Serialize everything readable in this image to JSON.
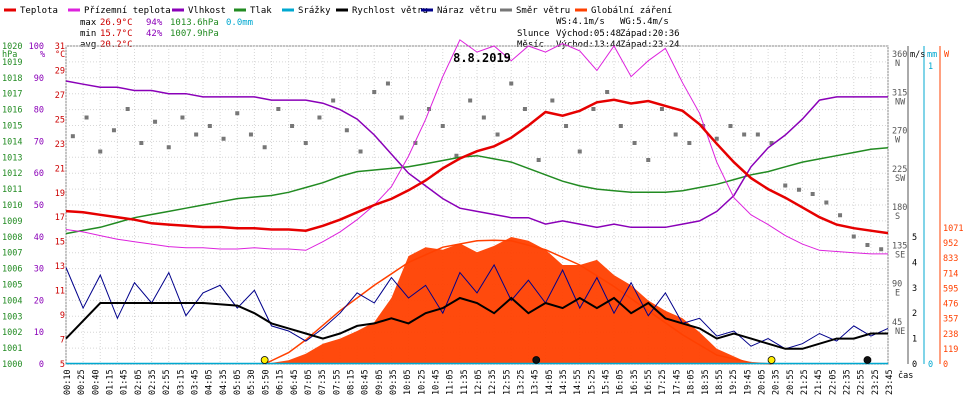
{
  "chart_data": {
    "type": "line",
    "title": "8.8.2019",
    "legend": [
      {
        "name": "Teplota",
        "color": "#e60000"
      },
      {
        "name": "Přízemní teplota",
        "color": "#dd22dd"
      },
      {
        "name": "Vlhkost",
        "color": "#8a00b8"
      },
      {
        "name": "Tlak",
        "color": "#228b22"
      },
      {
        "name": "Srážky",
        "color": "#00a8d0"
      },
      {
        "name": "Rychlost větru",
        "color": "#000000"
      },
      {
        "name": "Náraz větru",
        "color": "#00008b"
      },
      {
        "name": "Směr větru",
        "color": "#777777"
      },
      {
        "name": "Globální záření",
        "color": "#ff4000"
      }
    ],
    "stats": {
      "max_label": "max",
      "max_temp": "26.9°C",
      "max_hum": "94%",
      "max_press": "1013.6hPa",
      "rain": "0.0mm",
      "min_label": "min",
      "min_temp": "15.7°C",
      "min_hum": "42%",
      "min_press": "1007.9hPa",
      "avg_label": "avg",
      "avg_temp": "20.2°C"
    },
    "info": {
      "ws": "WS:4.1m/s",
      "wg": "WG:5.4m/s",
      "slunce_label": "Slunce",
      "slunce_vychod": "Východ:05:48",
      "slunce_zapad": "Západ:20:36",
      "mesic_label": "Měsíc",
      "mesic_vychod": "Východ:13:44",
      "mesic_zapad": "Západ:23:24"
    },
    "unit_labels": {
      "hpa": "hPa",
      "percent": "%",
      "celsius": "°C",
      "ms": "m/s",
      "mm": "mm",
      "w": "W",
      "time": "čas"
    },
    "axes": {
      "hpa_ticks": [
        "1000",
        "1001",
        "1002",
        "1003",
        "1004",
        "1005",
        "1006",
        "1007",
        "1008",
        "1009",
        "1010",
        "1011",
        "1012",
        "1013",
        "1014",
        "1015",
        "1016",
        "1017",
        "1018",
        "1019",
        "1020"
      ],
      "percent_ticks": [
        "0",
        "10",
        "20",
        "30",
        "40",
        "50",
        "60",
        "70",
        "80",
        "90",
        "100"
      ],
      "temp_ticks": [
        "5",
        "7",
        "9",
        "11",
        "13",
        "15",
        "17",
        "19",
        "21",
        "23",
        "25",
        "27",
        "29",
        "31"
      ],
      "dir_ticks": [
        {
          "deg": 45,
          "num": "45",
          "dir": "NE"
        },
        {
          "deg": 90,
          "num": "90",
          "dir": "E"
        },
        {
          "deg": 135,
          "num": "135",
          "dir": "SE"
        },
        {
          "deg": 180,
          "num": "180",
          "dir": "S"
        },
        {
          "deg": 225,
          "num": "225",
          "dir": "SW"
        },
        {
          "deg": 270,
          "num": "270",
          "dir": "W"
        },
        {
          "deg": 315,
          "num": "315",
          "dir": "NW"
        },
        {
          "deg": 360,
          "num": "360",
          "dir": "N"
        }
      ],
      "wind_ticks": [
        "0",
        "1",
        "2",
        "3",
        "4",
        "5"
      ],
      "rain_ticks": [
        "0",
        "1"
      ],
      "rad_ticks": [
        "0",
        "119",
        "238",
        "357",
        "476",
        "595",
        "714",
        "833",
        "952",
        "1071"
      ],
      "time_ticks": [
        "00:10",
        "00:25",
        "00:40",
        "01:15",
        "01:45",
        "02:05",
        "02:35",
        "02:55",
        "03:15",
        "03:45",
        "04:05",
        "04:35",
        "05:05",
        "05:30",
        "05:50",
        "06:15",
        "06:45",
        "07:05",
        "07:35",
        "07:55",
        "08:15",
        "08:45",
        "09:05",
        "09:35",
        "10:05",
        "10:25",
        "10:45",
        "11:05",
        "11:35",
        "12:05",
        "12:35",
        "12:55",
        "13:25",
        "13:45",
        "14:05",
        "14:35",
        "14:55",
        "15:25",
        "15:45",
        "16:05",
        "16:35",
        "16:55",
        "17:25",
        "17:45",
        "18:05",
        "18:35",
        "18:55",
        "19:25",
        "19:45",
        "20:05",
        "20:35",
        "20:55",
        "21:25",
        "21:45",
        "22:05",
        "22:35",
        "22:55",
        "23:25",
        "23:45"
      ]
    },
    "series": [
      {
        "name": "Teplota",
        "unit": "°C",
        "x": [
          0,
          0.5,
          1,
          1.5,
          2,
          2.5,
          3,
          3.5,
          4,
          4.5,
          5,
          5.5,
          6,
          6.5,
          7,
          7.5,
          8,
          8.5,
          9,
          9.5,
          10,
          10.5,
          11,
          11.5,
          12,
          12.5,
          13,
          13.5,
          14,
          14.5,
          15,
          15.5,
          16,
          16.5,
          17,
          17.5,
          18,
          18.5,
          19,
          19.5,
          20,
          20.5,
          21,
          21.5,
          22,
          22.5,
          23,
          23.5,
          24
        ],
        "y": [
          17.5,
          17.4,
          17.2,
          17.0,
          16.8,
          16.5,
          16.4,
          16.3,
          16.2,
          16.2,
          16.1,
          16.1,
          16.0,
          16.0,
          15.9,
          16.3,
          16.8,
          17.4,
          18.0,
          18.5,
          19.2,
          20.0,
          21.0,
          21.8,
          22.4,
          22.8,
          23.5,
          24.5,
          25.6,
          25.3,
          25.7,
          26.4,
          26.6,
          26.3,
          26.5,
          26.1,
          25.7,
          24.6,
          23.0,
          21.5,
          20.2,
          19.3,
          18.6,
          17.8,
          17.0,
          16.4,
          16.1,
          15.9,
          15.7
        ]
      },
      {
        "name": "Přízemní teplota",
        "unit": "°C",
        "x": [
          0,
          0.5,
          1,
          1.5,
          2,
          2.5,
          3,
          3.5,
          4,
          4.5,
          5,
          5.5,
          6,
          6.5,
          7,
          7.5,
          8,
          8.5,
          9,
          9.5,
          10,
          10.5,
          11,
          11.5,
          12,
          12.5,
          13,
          13.5,
          14,
          14.5,
          15,
          15.5,
          16,
          16.5,
          17,
          17.5,
          18,
          18.5,
          19,
          19.5,
          20,
          20.5,
          21,
          21.5,
          22,
          22.5,
          23,
          23.5,
          24
        ],
        "y": [
          16.0,
          15.8,
          15.5,
          15.2,
          15.0,
          14.8,
          14.6,
          14.5,
          14.5,
          14.4,
          14.4,
          14.5,
          14.4,
          14.4,
          14.3,
          15.0,
          15.8,
          16.8,
          18.0,
          19.5,
          22.0,
          25.0,
          28.5,
          31.5,
          30.5,
          31.0,
          29.8,
          31.0,
          30.5,
          31.2,
          30.6,
          29.0,
          31.0,
          28.5,
          29.8,
          30.8,
          28.0,
          25.5,
          21.5,
          18.6,
          17.2,
          16.4,
          15.5,
          14.8,
          14.3,
          14.2,
          14.1,
          14.0,
          14.0
        ]
      },
      {
        "name": "Vlhkost",
        "unit": "%",
        "x": [
          0,
          0.5,
          1,
          1.5,
          2,
          2.5,
          3,
          3.5,
          4,
          4.5,
          5,
          5.5,
          6,
          6.5,
          7,
          7.5,
          8,
          8.5,
          9,
          9.5,
          10,
          10.5,
          11,
          11.5,
          12,
          12.5,
          13,
          13.5,
          14,
          14.5,
          15,
          15.5,
          16,
          16.5,
          17,
          17.5,
          18,
          18.5,
          19,
          19.5,
          20,
          20.5,
          21,
          21.5,
          22,
          22.5,
          23,
          23.5,
          24
        ],
        "y": [
          89,
          88,
          87,
          87,
          86,
          86,
          85,
          85,
          84,
          84,
          84,
          84,
          83,
          83,
          83,
          82,
          80,
          77,
          72,
          66,
          60,
          56,
          52,
          49,
          48,
          47,
          46,
          46,
          44,
          45,
          44,
          43,
          44,
          43,
          43,
          43,
          44,
          45,
          48,
          53,
          62,
          68,
          72,
          77,
          83,
          84,
          84,
          84,
          84
        ]
      },
      {
        "name": "Tlak",
        "unit": "hPa",
        "x": [
          0,
          0.5,
          1,
          1.5,
          2,
          2.5,
          3,
          3.5,
          4,
          4.5,
          5,
          5.5,
          6,
          6.5,
          7,
          7.5,
          8,
          8.5,
          9,
          9.5,
          10,
          10.5,
          11,
          11.5,
          12,
          12.5,
          13,
          13.5,
          14,
          14.5,
          15,
          15.5,
          16,
          16.5,
          17,
          17.5,
          18,
          18.5,
          19,
          19.5,
          20,
          20.5,
          21,
          21.5,
          22,
          22.5,
          23,
          23.5,
          24
        ],
        "y": [
          1008.2,
          1008.4,
          1008.6,
          1008.9,
          1009.2,
          1009.4,
          1009.6,
          1009.8,
          1010.0,
          1010.2,
          1010.4,
          1010.5,
          1010.6,
          1010.8,
          1011.1,
          1011.4,
          1011.8,
          1012.1,
          1012.2,
          1012.3,
          1012.4,
          1012.6,
          1012.8,
          1013.0,
          1013.1,
          1012.9,
          1012.7,
          1012.3,
          1011.9,
          1011.5,
          1011.2,
          1011.0,
          1010.9,
          1010.8,
          1010.8,
          1010.8,
          1010.9,
          1011.1,
          1011.3,
          1011.6,
          1011.9,
          1012.1,
          1012.4,
          1012.7,
          1012.9,
          1013.1,
          1013.3,
          1013.5,
          1013.6
        ]
      },
      {
        "name": "Rychlost větru",
        "unit": "m/s",
        "x": [
          0,
          1,
          2,
          3,
          4,
          5,
          5.5,
          6,
          6.5,
          7,
          7.5,
          8,
          8.5,
          9,
          9.5,
          10,
          10.5,
          11,
          11.5,
          12,
          12.5,
          13,
          13.5,
          14,
          14.5,
          15,
          15.5,
          16,
          16.5,
          17,
          17.5,
          18,
          18.5,
          19,
          19.5,
          20,
          20.5,
          21,
          21.5,
          22,
          22.5,
          23,
          23.5,
          24
        ],
        "y": [
          1,
          2.4,
          2.4,
          2.4,
          2.4,
          2.3,
          2.0,
          1.6,
          1.4,
          1.2,
          1.0,
          1.2,
          1.5,
          1.6,
          1.8,
          1.6,
          2.0,
          2.2,
          2.6,
          2.4,
          2.0,
          2.6,
          2.0,
          2.4,
          2.2,
          2.6,
          2.2,
          2.6,
          2.0,
          2.4,
          1.8,
          1.6,
          1.4,
          1.0,
          1.2,
          1.0,
          0.8,
          0.6,
          0.6,
          0.8,
          1.0,
          1.0,
          1.2,
          1.2
        ]
      },
      {
        "name": "Náraz větru",
        "unit": "m/s",
        "x": [
          0,
          0.5,
          1,
          1.5,
          2,
          2.5,
          3,
          3.5,
          4,
          4.5,
          5,
          5.5,
          6,
          6.5,
          7,
          7.5,
          8,
          8.5,
          9,
          9.5,
          10,
          10.5,
          11,
          11.5,
          12,
          12.5,
          13,
          13.5,
          14,
          14.5,
          15,
          15.5,
          16,
          16.5,
          17,
          17.5,
          18,
          18.5,
          19,
          19.5,
          20,
          20.5,
          21,
          21.5,
          22,
          22.5,
          23,
          23.5,
          24
        ],
        "y": [
          3.8,
          2.2,
          3.5,
          1.8,
          3.2,
          2.4,
          3.6,
          1.9,
          2.8,
          3.1,
          2.2,
          2.9,
          1.5,
          1.3,
          0.9,
          1.4,
          2.0,
          2.8,
          2.4,
          3.4,
          2.6,
          3.1,
          2.0,
          3.6,
          2.8,
          3.9,
          2.5,
          3.3,
          2.4,
          3.7,
          2.2,
          3.4,
          2.0,
          3.2,
          1.9,
          2.8,
          1.6,
          1.8,
          1.1,
          1.3,
          0.7,
          1.0,
          0.6,
          0.8,
          1.2,
          0.9,
          1.5,
          1.1,
          1.4
        ]
      },
      {
        "name": "Globální záření",
        "unit": "W",
        "x": [
          5.8,
          6.5,
          7,
          7.5,
          8,
          8.5,
          9,
          9.5,
          10,
          10.5,
          11,
          11.5,
          12,
          12.5,
          13,
          13.5,
          14,
          14.5,
          15,
          15.5,
          16,
          16.5,
          17,
          17.5,
          18,
          18.5,
          19,
          19.5,
          20
        ],
        "y": [
          0,
          30,
          80,
          160,
          200,
          260,
          330,
          520,
          850,
          920,
          900,
          950,
          880,
          930,
          1000,
          970,
          900,
          780,
          780,
          820,
          700,
          620,
          500,
          420,
          360,
          250,
          120,
          60,
          0
        ]
      },
      {
        "name": "Globální záření (teoretické)",
        "unit": "W",
        "x": [
          5.8,
          6.5,
          7,
          8,
          9,
          10,
          11,
          12,
          12.5,
          13,
          14,
          15,
          16,
          17,
          18,
          19,
          20,
          20.6
        ],
        "y": [
          0,
          90,
          190,
          420,
          620,
          800,
          920,
          970,
          975,
          970,
          900,
          780,
          610,
          420,
          230,
          70,
          10,
          0
        ]
      },
      {
        "name": "Směr větru",
        "unit": "°",
        "x": [
          0.2,
          0.6,
          1.0,
          1.4,
          1.8,
          2.2,
          2.6,
          3.0,
          3.4,
          3.8,
          4.2,
          4.6,
          5.0,
          5.4,
          5.8,
          6.2,
          6.6,
          7.0,
          7.4,
          7.8,
          8.2,
          8.6,
          9.0,
          9.4,
          9.8,
          10.2,
          10.6,
          11.0,
          11.4,
          11.8,
          12.2,
          12.6,
          13.0,
          13.4,
          13.8,
          14.2,
          14.6,
          15.0,
          15.4,
          15.8,
          16.2,
          16.6,
          17.0,
          17.4,
          17.8,
          18.2,
          18.6,
          19.0,
          19.4,
          19.8,
          20.2,
          20.6,
          21.0,
          21.4,
          21.8,
          22.2,
          22.6,
          23.0,
          23.4,
          23.8
        ],
        "y": [
          268,
          290,
          250,
          275,
          300,
          260,
          285,
          255,
          290,
          270,
          280,
          265,
          295,
          270,
          255,
          300,
          280,
          260,
          290,
          310,
          275,
          250,
          320,
          330,
          290,
          260,
          300,
          280,
          245,
          310,
          290,
          270,
          330,
          300,
          240,
          310,
          280,
          250,
          300,
          320,
          280,
          260,
          240,
          300,
          270,
          260,
          280,
          265,
          280,
          270,
          270,
          260,
          210,
          205,
          200,
          190,
          175,
          150,
          140,
          135
        ]
      }
    ],
    "events": [
      {
        "hour": 5.8,
        "color": "#ffee00",
        "kind": "sunrise"
      },
      {
        "hour": 13.73,
        "color": "#111111",
        "kind": "moonrise"
      },
      {
        "hour": 20.6,
        "color": "#ffee00",
        "kind": "sunset"
      },
      {
        "hour": 23.4,
        "color": "#111111",
        "kind": "moonset"
      }
    ]
  }
}
